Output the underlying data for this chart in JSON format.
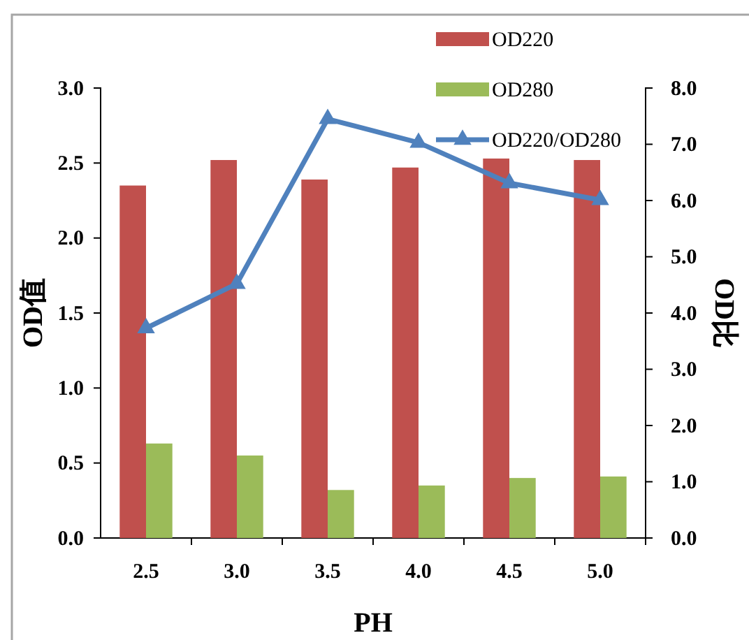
{
  "chart_data": {
    "type": "bar",
    "xlabel": "PH",
    "ylabel": "OD值",
    "y2label": "OD比",
    "categories": [
      "2.5",
      "3.0",
      "3.5",
      "4.0",
      "4.5",
      "5.0"
    ],
    "series": [
      {
        "name": "OD220",
        "color": "#c0504d",
        "values": [
          2.35,
          2.52,
          2.39,
          2.47,
          2.53,
          2.52
        ]
      },
      {
        "name": "OD280",
        "color": "#9bbb59",
        "values": [
          0.63,
          0.55,
          0.32,
          0.35,
          0.4,
          0.41
        ]
      },
      {
        "name": "OD220/OD280",
        "type": "line",
        "axis": "y2",
        "color": "#4f81bd",
        "marker": "triangle",
        "values": [
          3.73,
          4.52,
          7.45,
          7.03,
          6.31,
          6.01
        ]
      }
    ],
    "ylim": [
      0,
      3
    ],
    "yticks": [
      {
        "value": 0,
        "label": "0.0"
      },
      {
        "value": 0.5,
        "label": "0.5"
      },
      {
        "value": 1,
        "label": "1.0"
      },
      {
        "value": 1.5,
        "label": "1.5"
      },
      {
        "value": 2,
        "label": "2.0"
      },
      {
        "value": 2.5,
        "label": "2.5"
      },
      {
        "value": 3,
        "label": "3.0"
      }
    ],
    "y2lim": [
      0,
      8
    ],
    "y2ticks": [
      {
        "value": 0,
        "label": "0.0"
      },
      {
        "value": 1,
        "label": "1.0"
      },
      {
        "value": 2,
        "label": "2.0"
      },
      {
        "value": 3,
        "label": "3.0"
      },
      {
        "value": 4,
        "label": "4.0"
      },
      {
        "value": 5,
        "label": "5.0"
      },
      {
        "value": 6,
        "label": "6.0"
      },
      {
        "value": 7,
        "label": "7.0"
      },
      {
        "value": 8,
        "label": "8.0"
      }
    ],
    "legend": "top right",
    "grid": false
  }
}
